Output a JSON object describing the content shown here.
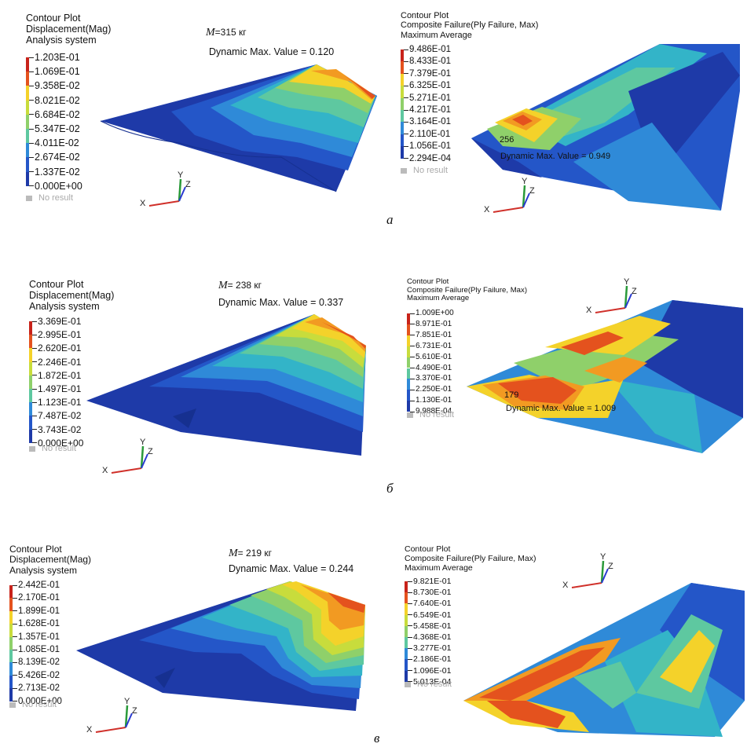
{
  "palette": [
    "#1e3aa8",
    "#2456c8",
    "#2f8ad8",
    "#33b4c8",
    "#5ec8a0",
    "#8fd06a",
    "#c8dc3c",
    "#f4d22a",
    "#f29a22",
    "#e4521e",
    "#c8231a"
  ],
  "panels": [
    {
      "id": "a1",
      "header": [
        "Contour Plot",
        "Displacement(Mag)",
        "Analysis system"
      ],
      "legend": [
        "1.203E-01",
        "1.069E-01",
        "9.358E-02",
        "8.021E-02",
        "6.684E-02",
        "5.347E-02",
        "4.011E-02",
        "2.674E-02",
        "1.337E-02",
        "0.000E+00"
      ],
      "no_result": "No result",
      "mass_label": "M",
      "mass_value": "=315 кг",
      "dyn_max": "Dynamic Max. Value =  0.120"
    },
    {
      "id": "a2",
      "header": [
        "Contour Plot",
        "Composite Failure(Ply Failure, Max)",
        "Maximum Average"
      ],
      "legend": [
        "9.486E-01",
        "8.433E-01",
        "7.379E-01",
        "6.325E-01",
        "5.271E-01",
        "4.217E-01",
        "3.164E-01",
        "2.110E-01",
        "1.056E-01",
        "2.294E-04"
      ],
      "no_result": "No result",
      "node": "256",
      "dyn_max": "Dynamic Max. Value = 0.949"
    },
    {
      "id": "b1",
      "header": [
        "Contour Plot",
        "Displacement(Mag)",
        "Analysis system"
      ],
      "legend": [
        "3.369E-01",
        "2.995E-01",
        "2.620E-01",
        "2.246E-01",
        "1.872E-01",
        "1.497E-01",
        "1.123E-01",
        "7.487E-02",
        "3.743E-02",
        "0.000E+00"
      ],
      "no_result": "No result",
      "mass_label": "M",
      "mass_value": "= 238 кг",
      "dyn_max": "Dynamic Max. Value =  0.337"
    },
    {
      "id": "b2",
      "header": [
        "Contour Plot",
        "Composite Failure(Ply Failure, Max)",
        "Maximum Average"
      ],
      "legend": [
        "1.009E+00",
        "8.971E-01",
        "7.851E-01",
        "6.731E-01",
        "5.610E-01",
        "4.490E-01",
        "3.370E-01",
        "2.250E-01",
        "1.130E-01",
        "9.988E-04"
      ],
      "no_result": "No result",
      "node": "179",
      "dyn_max": "Dynamic Max. Value = 1.009"
    },
    {
      "id": "c1",
      "header": [
        "Contour Plot",
        "Displacement(Mag)",
        "Analysis system"
      ],
      "legend": [
        "2.442E-01",
        "2.170E-01",
        "1.899E-01",
        "1.628E-01",
        "1.357E-01",
        "1.085E-01",
        "8.139E-02",
        "5.426E-02",
        "2.713E-02",
        "0.000E+00"
      ],
      "no_result": "No result",
      "mass_label": "M",
      "mass_value": "= 219 кг",
      "dyn_max": "Dynamic Max. Value =  0.244"
    },
    {
      "id": "c2",
      "header": [
        "Contour Plot",
        "Composite Failure(Ply Failure, Max)",
        "Maximum Average"
      ],
      "legend": [
        "9.821E-01",
        "8.730E-01",
        "7.640E-01",
        "6.549E-01",
        "5.458E-01",
        "4.368E-01",
        "3.277E-01",
        "2.186E-01",
        "1.096E-01",
        "5.013E-04"
      ],
      "no_result": "No result"
    }
  ],
  "axis_labels": {
    "x": "X",
    "y": "Y",
    "z": "Z"
  },
  "subfig": [
    "а",
    "б",
    "в"
  ]
}
